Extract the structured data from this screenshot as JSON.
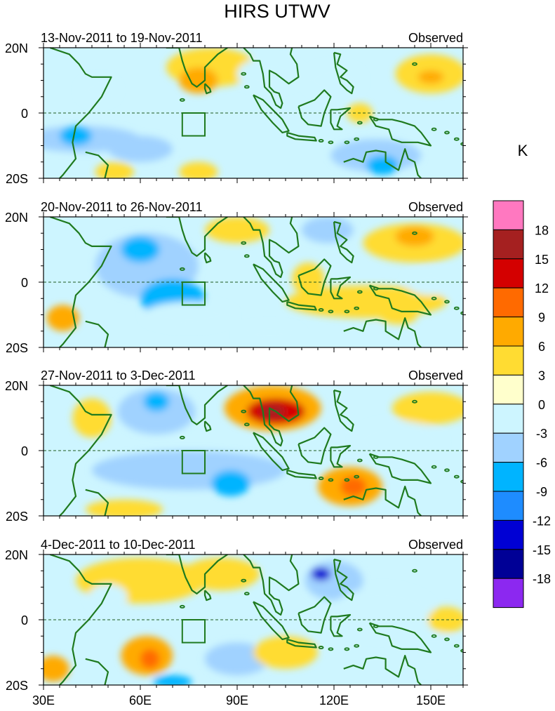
{
  "chart_data": {
    "type": "heatmap",
    "title": "HIRS UTWV",
    "units": "K",
    "lon_range": [
      30,
      160
    ],
    "lat_range": [
      -20,
      20
    ],
    "x_ticks": [
      {
        "value": 30,
        "label": "30E"
      },
      {
        "value": 60,
        "label": "60E"
      },
      {
        "value": 90,
        "label": "90E"
      },
      {
        "value": 120,
        "label": "120E"
      },
      {
        "value": 150,
        "label": "150E"
      }
    ],
    "y_ticks": [
      {
        "value": 20,
        "label": "20N"
      },
      {
        "value": 0,
        "label": "0"
      },
      {
        "value": -20,
        "label": "20S"
      }
    ],
    "equator_line": "dashed",
    "box_region": {
      "lon": [
        73,
        80
      ],
      "lat": [
        -7,
        0
      ]
    },
    "colorbar": {
      "levels": [
        "18",
        "15",
        "12",
        "9",
        "6",
        "3",
        "0",
        "-3",
        "-6",
        "-9",
        "-12",
        "-15",
        "-18"
      ],
      "colors": [
        "#ff78c0",
        "#a52020",
        "#d40000",
        "#ff6a00",
        "#ffaa00",
        "#ffdc32",
        "#ffffcc",
        "#cdf5ff",
        "#a0d2ff",
        "#00b4ff",
        "#1e8cff",
        "#0000d4",
        "#000096",
        "#8c28f0"
      ]
    },
    "panels": [
      {
        "period": "13-Nov-2011 to 19-Nov-2011",
        "label": "Observed",
        "blobs": [
          {
            "lon": 47,
            "lat": 7,
            "rl": 6,
            "rt": 4,
            "v": -3
          },
          {
            "lon": 42,
            "lat": -8,
            "rl": 18,
            "rt": 4,
            "v": -4
          },
          {
            "lon": 40,
            "lat": -7,
            "rl": 5,
            "rt": 3,
            "v": -8
          },
          {
            "lon": 60,
            "lat": -11,
            "rl": 10,
            "rt": 4,
            "v": -4
          },
          {
            "lon": 52,
            "lat": -18,
            "rl": 6,
            "rt": 3,
            "v": 4
          },
          {
            "lon": 82,
            "lat": 14,
            "rl": 14,
            "rt": 6,
            "v": 5
          },
          {
            "lon": 78,
            "lat": 10,
            "rl": 6,
            "rt": 4,
            "v": 7
          },
          {
            "lon": 78,
            "lat": -18,
            "rl": 6,
            "rt": 3,
            "v": 4
          },
          {
            "lon": 150,
            "lat": 12,
            "rl": 11,
            "rt": 6,
            "v": 5
          },
          {
            "lon": 150,
            "lat": 11,
            "rl": 4,
            "rt": 2,
            "v": 7
          },
          {
            "lon": 133,
            "lat": -13,
            "rl": 14,
            "rt": 5,
            "v": -4
          },
          {
            "lon": 135,
            "lat": -16,
            "rl": 5,
            "rt": 3,
            "v": -8
          },
          {
            "lon": 128,
            "lat": 0,
            "rl": 4,
            "rt": 3,
            "v": 4
          },
          {
            "lon": 120,
            "lat": 10,
            "rl": 9,
            "rt": 5,
            "v": -3
          },
          {
            "lon": 100,
            "lat": 12,
            "rl": 10,
            "rt": 5,
            "v": -2
          }
        ]
      },
      {
        "period": "20-Nov-2011 to 26-Nov-2011",
        "label": "Observed",
        "blobs": [
          {
            "lon": 62,
            "lat": 5,
            "rl": 16,
            "rt": 10,
            "v": -6
          },
          {
            "lon": 60,
            "lat": 10,
            "rl": 6,
            "rt": 4,
            "v": -8
          },
          {
            "lon": 70,
            "lat": -5,
            "rl": 10,
            "rt": 6,
            "v": -7
          },
          {
            "lon": 75,
            "lat": -10,
            "rl": 14,
            "rt": 4,
            "v": -3
          },
          {
            "lon": 36,
            "lat": -11,
            "rl": 5,
            "rt": 4,
            "v": 6
          },
          {
            "lon": 90,
            "lat": 16,
            "rl": 10,
            "rt": 4,
            "v": 5
          },
          {
            "lon": 145,
            "lat": 12,
            "rl": 16,
            "rt": 6,
            "v": 5
          },
          {
            "lon": 145,
            "lat": 14,
            "rl": 6,
            "rt": 3,
            "v": 7
          },
          {
            "lon": 130,
            "lat": -6,
            "rl": 25,
            "rt": 5,
            "v": 3
          },
          {
            "lon": 140,
            "lat": -10,
            "rl": 6,
            "rt": 3,
            "v": 5
          },
          {
            "lon": 112,
            "lat": 1,
            "rl": 5,
            "rt": 5,
            "v": 4
          },
          {
            "lon": 150,
            "lat": 0,
            "rl": 8,
            "rt": 4,
            "v": -3
          },
          {
            "lon": 118,
            "lat": 16,
            "rl": 8,
            "rt": 4,
            "v": -4
          },
          {
            "lon": 100,
            "lat": -16,
            "rl": 10,
            "rt": 3,
            "v": -2
          }
        ]
      },
      {
        "period": "27-Nov-2011 to 3-Dec-2011",
        "label": "Observed",
        "blobs": [
          {
            "lon": 65,
            "lat": 12,
            "rl": 12,
            "rt": 7,
            "v": -6
          },
          {
            "lon": 65,
            "lat": 15,
            "rl": 4,
            "rt": 3,
            "v": -9
          },
          {
            "lon": 75,
            "lat": -6,
            "rl": 30,
            "rt": 6,
            "v": -6
          },
          {
            "lon": 88,
            "lat": -10,
            "rl": 6,
            "rt": 4,
            "v": -8
          },
          {
            "lon": 101,
            "lat": 13,
            "rl": 15,
            "rt": 7,
            "v": 8
          },
          {
            "lon": 102,
            "lat": 12,
            "rl": 9,
            "rt": 4,
            "v": 12
          },
          {
            "lon": 101,
            "lat": 12,
            "rl": 4,
            "rt": 2,
            "v": 16
          },
          {
            "lon": 125,
            "lat": -11,
            "rl": 10,
            "rt": 6,
            "v": 7
          },
          {
            "lon": 126,
            "lat": -11,
            "rl": 4,
            "rt": 3,
            "v": 10
          },
          {
            "lon": 150,
            "lat": 13,
            "rl": 12,
            "rt": 5,
            "v": 5
          },
          {
            "lon": 45,
            "lat": 10,
            "rl": 6,
            "rt": 6,
            "v": 3
          },
          {
            "lon": 55,
            "lat": -18,
            "rl": 12,
            "rt": 3,
            "v": 4
          },
          {
            "lon": 140,
            "lat": 3,
            "rl": 14,
            "rt": 6,
            "v": -3
          }
        ]
      },
      {
        "period": "4-Dec-2011 to 10-Dec-2011",
        "label": "Observed",
        "blobs": [
          {
            "lon": 60,
            "lat": 12,
            "rl": 20,
            "rt": 7,
            "v": 4
          },
          {
            "lon": 85,
            "lat": 14,
            "rl": 12,
            "rt": 5,
            "v": 5
          },
          {
            "lon": 62,
            "lat": -11,
            "rl": 8,
            "rt": 6,
            "v": 6
          },
          {
            "lon": 63,
            "lat": -12,
            "rl": 3,
            "rt": 3,
            "v": 10
          },
          {
            "lon": 120,
            "lat": 12,
            "rl": 9,
            "rt": 6,
            "v": -6
          },
          {
            "lon": 116,
            "lat": 14,
            "rl": 3,
            "rt": 2,
            "v": -15
          },
          {
            "lon": 135,
            "lat": 2,
            "rl": 16,
            "rt": 8,
            "v": -3
          },
          {
            "lon": 90,
            "lat": -12,
            "rl": 10,
            "rt": 5,
            "v": -6
          },
          {
            "lon": 70,
            "lat": -19,
            "rl": 6,
            "rt": 2,
            "v": -7
          },
          {
            "lon": 50,
            "lat": 7,
            "rl": 6,
            "rt": 4,
            "v": -3
          },
          {
            "lon": 150,
            "lat": -10,
            "rl": 12,
            "rt": 6,
            "v": -3
          },
          {
            "lon": 155,
            "lat": 0,
            "rl": 6,
            "rt": 4,
            "v": 3
          },
          {
            "lon": 33,
            "lat": -15,
            "rl": 5,
            "rt": 4,
            "v": 6
          },
          {
            "lon": 105,
            "lat": -10,
            "rl": 10,
            "rt": 5,
            "v": 3
          }
        ]
      }
    ]
  }
}
